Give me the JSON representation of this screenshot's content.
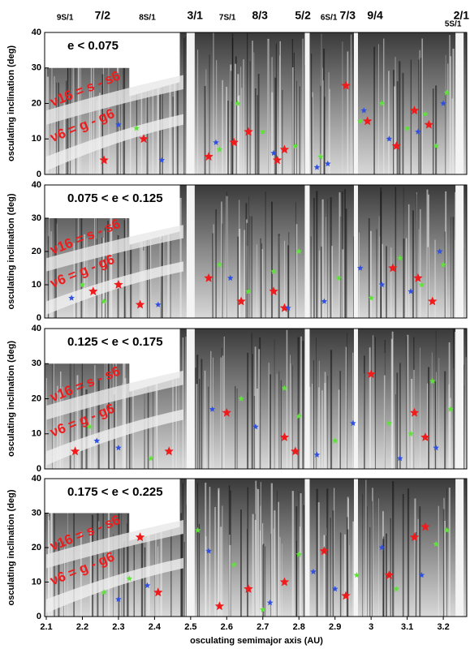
{
  "chart_data": [
    {
      "type": "scatter",
      "title": "e < 0.075",
      "ylabel": "osculating inclination (deg)",
      "xlim": [
        2.1,
        3.265
      ],
      "ylim": [
        0,
        40
      ],
      "yticks": [
        0,
        10,
        20,
        30,
        40
      ],
      "resonances": [
        {
          "text": "9S/1",
          "x": 2.152
        },
        {
          "text": "7/2",
          "x": 2.256
        },
        {
          "text": "8S/1",
          "x": 2.38
        },
        {
          "text": "3/1",
          "x": 2.512
        },
        {
          "text": "7S/1",
          "x": 2.602
        },
        {
          "text": "8/3",
          "x": 2.692
        },
        {
          "text": "5/2",
          "x": 2.811
        },
        {
          "text": "6S/1",
          "x": 2.883
        },
        {
          "text": "7/3",
          "x": 2.935
        },
        {
          "text": "9/4",
          "x": 3.011
        },
        {
          "text": "2/1",
          "x": 3.25
        },
        {
          "text": "5S/1",
          "x": 3.227
        }
      ],
      "annotations": [
        "ν16 = s - s6",
        "ν6 = g - g6"
      ],
      "series": [
        {
          "color": "#ee1c1c",
          "x": [
            2.26,
            2.37,
            2.55,
            2.62,
            2.66,
            2.74,
            2.76,
            2.93,
            2.99,
            3.07,
            3.12,
            3.16
          ],
          "values": [
            4,
            10,
            5,
            9,
            12,
            4,
            7,
            25,
            15,
            8,
            18,
            14
          ]
        },
        {
          "color": "#5fe23a",
          "x": [
            2.35,
            2.58,
            2.63,
            2.7,
            2.79,
            2.86,
            2.97,
            3.03,
            3.1,
            3.15,
            3.18,
            3.21
          ],
          "values": [
            13,
            7,
            20,
            12,
            8,
            5,
            15,
            20,
            13,
            17,
            8,
            23
          ]
        },
        {
          "color": "#3050e0",
          "x": [
            2.3,
            2.42,
            2.57,
            2.73,
            2.85,
            2.88,
            2.98,
            3.05,
            3.13,
            3.2
          ],
          "values": [
            14,
            4,
            9,
            6,
            2,
            3,
            18,
            10,
            12,
            20
          ]
        }
      ]
    },
    {
      "type": "scatter",
      "title": "0.075 < e < 0.125",
      "ylabel": "osculating inclination (deg)",
      "xlim": [
        2.1,
        3.265
      ],
      "ylim": [
        0,
        40
      ],
      "yticks": [
        0,
        10,
        20,
        30,
        40
      ],
      "annotations": [
        "ν16 = s - s6",
        "ν6 = g - g6"
      ],
      "series": [
        {
          "color": "#ee1c1c",
          "x": [
            2.23,
            2.3,
            2.36,
            2.55,
            2.64,
            2.73,
            2.76,
            3.06,
            3.13,
            3.17
          ],
          "values": [
            8,
            10,
            4,
            12,
            5,
            8,
            3,
            15,
            12,
            5
          ]
        },
        {
          "color": "#5fe23a",
          "x": [
            2.2,
            2.26,
            2.58,
            2.66,
            2.73,
            2.8,
            2.91,
            3.0,
            3.08,
            3.14,
            3.2
          ],
          "values": [
            10,
            5,
            16,
            8,
            14,
            20,
            12,
            6,
            18,
            10,
            16
          ]
        },
        {
          "color": "#3050e0",
          "x": [
            2.17,
            2.41,
            2.61,
            2.77,
            2.87,
            2.97,
            3.03,
            3.11,
            3.19
          ],
          "values": [
            6,
            4,
            12,
            3,
            5,
            15,
            10,
            8,
            20
          ]
        }
      ]
    },
    {
      "type": "scatter",
      "title": "0.125 < e < 0.175",
      "ylabel": "osculating inclination (deg)",
      "xlim": [
        2.1,
        3.265
      ],
      "ylim": [
        0,
        40
      ],
      "yticks": [
        0,
        10,
        20,
        30,
        40
      ],
      "annotations": [
        "ν16 = s - s6",
        "ν6 = g - g6"
      ],
      "series": [
        {
          "color": "#ee1c1c",
          "x": [
            2.18,
            2.44,
            2.6,
            2.76,
            2.79,
            3.0,
            3.12,
            3.15
          ],
          "values": [
            5,
            5,
            16,
            9,
            5,
            27,
            16,
            9
          ]
        },
        {
          "color": "#5fe23a",
          "x": [
            2.22,
            2.39,
            2.64,
            2.76,
            2.8,
            2.9,
            3.05,
            3.11,
            3.17,
            3.22
          ],
          "values": [
            12,
            3,
            20,
            23,
            15,
            8,
            13,
            10,
            25,
            17
          ]
        },
        {
          "color": "#3050e0",
          "x": [
            2.24,
            2.3,
            2.56,
            2.68,
            2.85,
            2.95,
            3.08,
            3.18
          ],
          "values": [
            8,
            6,
            17,
            12,
            4,
            13,
            3,
            6
          ]
        }
      ]
    },
    {
      "type": "scatter",
      "title": "0.175 < e < 0.225",
      "ylabel": "osculating inclination (deg)",
      "xlabel": "osculating semimajor axis (AU)",
      "xlim": [
        2.1,
        3.265
      ],
      "ylim": [
        0,
        40
      ],
      "yticks": [
        0,
        10,
        20,
        30,
        40
      ],
      "xticks": [
        2.1,
        2.2,
        2.3,
        2.4,
        2.5,
        2.6,
        2.7,
        2.8,
        2.9,
        3,
        3.1,
        3.2
      ],
      "annotations": [
        "ν16 = s - s6",
        "ν6 = g - g6"
      ],
      "series": [
        {
          "color": "#ee1c1c",
          "x": [
            2.36,
            2.41,
            2.58,
            2.66,
            2.76,
            2.87,
            2.93,
            3.05,
            3.12,
            3.15
          ],
          "values": [
            23,
            7,
            3,
            8,
            10,
            19,
            6,
            12,
            23,
            26
          ]
        },
        {
          "color": "#5fe23a",
          "x": [
            2.26,
            2.33,
            2.52,
            2.62,
            2.7,
            2.8,
            2.96,
            3.07,
            3.18,
            3.21
          ],
          "values": [
            7,
            11,
            25,
            15,
            2,
            18,
            12,
            8,
            21,
            25
          ]
        },
        {
          "color": "#3050e0",
          "x": [
            2.3,
            2.38,
            2.55,
            2.72,
            2.84,
            2.9,
            3.03,
            3.14
          ],
          "values": [
            5,
            9,
            19,
            4,
            13,
            8,
            20,
            12
          ]
        }
      ]
    }
  ]
}
